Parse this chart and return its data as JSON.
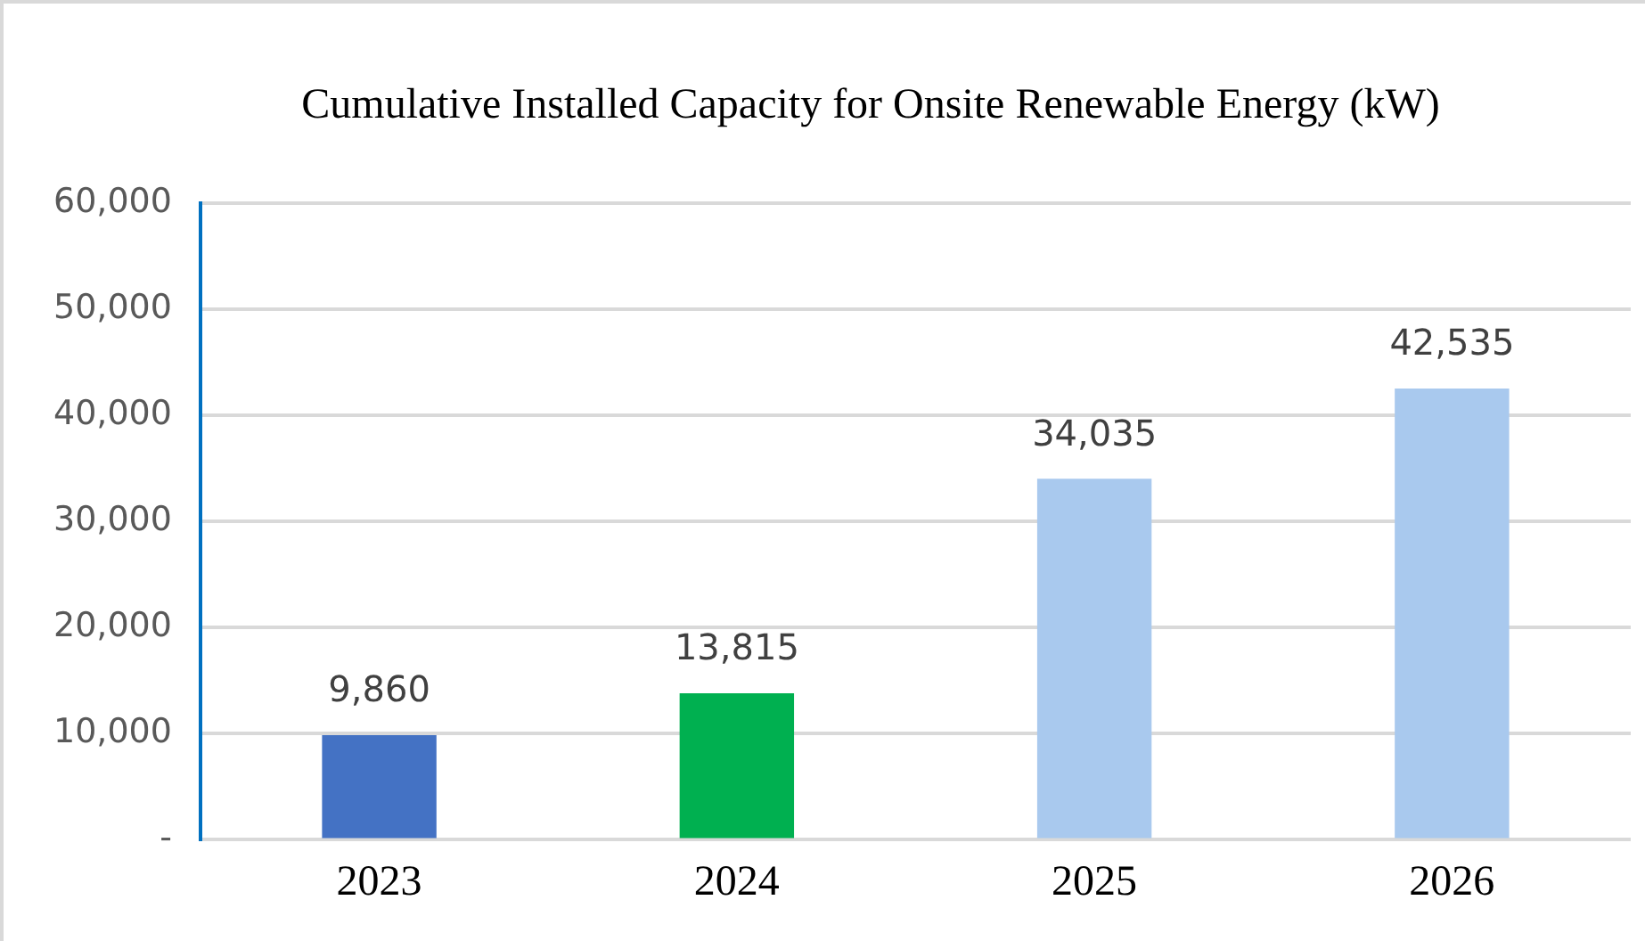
{
  "chart_data": {
    "type": "bar",
    "title": "Cumulative Installed Capacity for Onsite Renewable Energy (kW)",
    "categories": [
      "2023",
      "2024",
      "2025",
      "2026"
    ],
    "values": [
      9860,
      13815,
      34035,
      42535
    ],
    "colors": [
      "#4472c4",
      "#00b050",
      "#a9c9ee",
      "#a9c9ee"
    ],
    "ylim": [
      0,
      60000
    ],
    "yticks": [
      {
        "value": 0,
        "label": "-"
      },
      {
        "value": 10000,
        "label": "10,000"
      },
      {
        "value": 20000,
        "label": "20,000"
      },
      {
        "value": 30000,
        "label": "30,000"
      },
      {
        "value": 40000,
        "label": "40,000"
      },
      {
        "value": 50000,
        "label": "50,000"
      },
      {
        "value": 60000,
        "label": "60,000"
      }
    ],
    "value_labels": [
      "9,860",
      "13,815",
      "34,035",
      "42,535"
    ],
    "grid": "y",
    "legend": false
  }
}
